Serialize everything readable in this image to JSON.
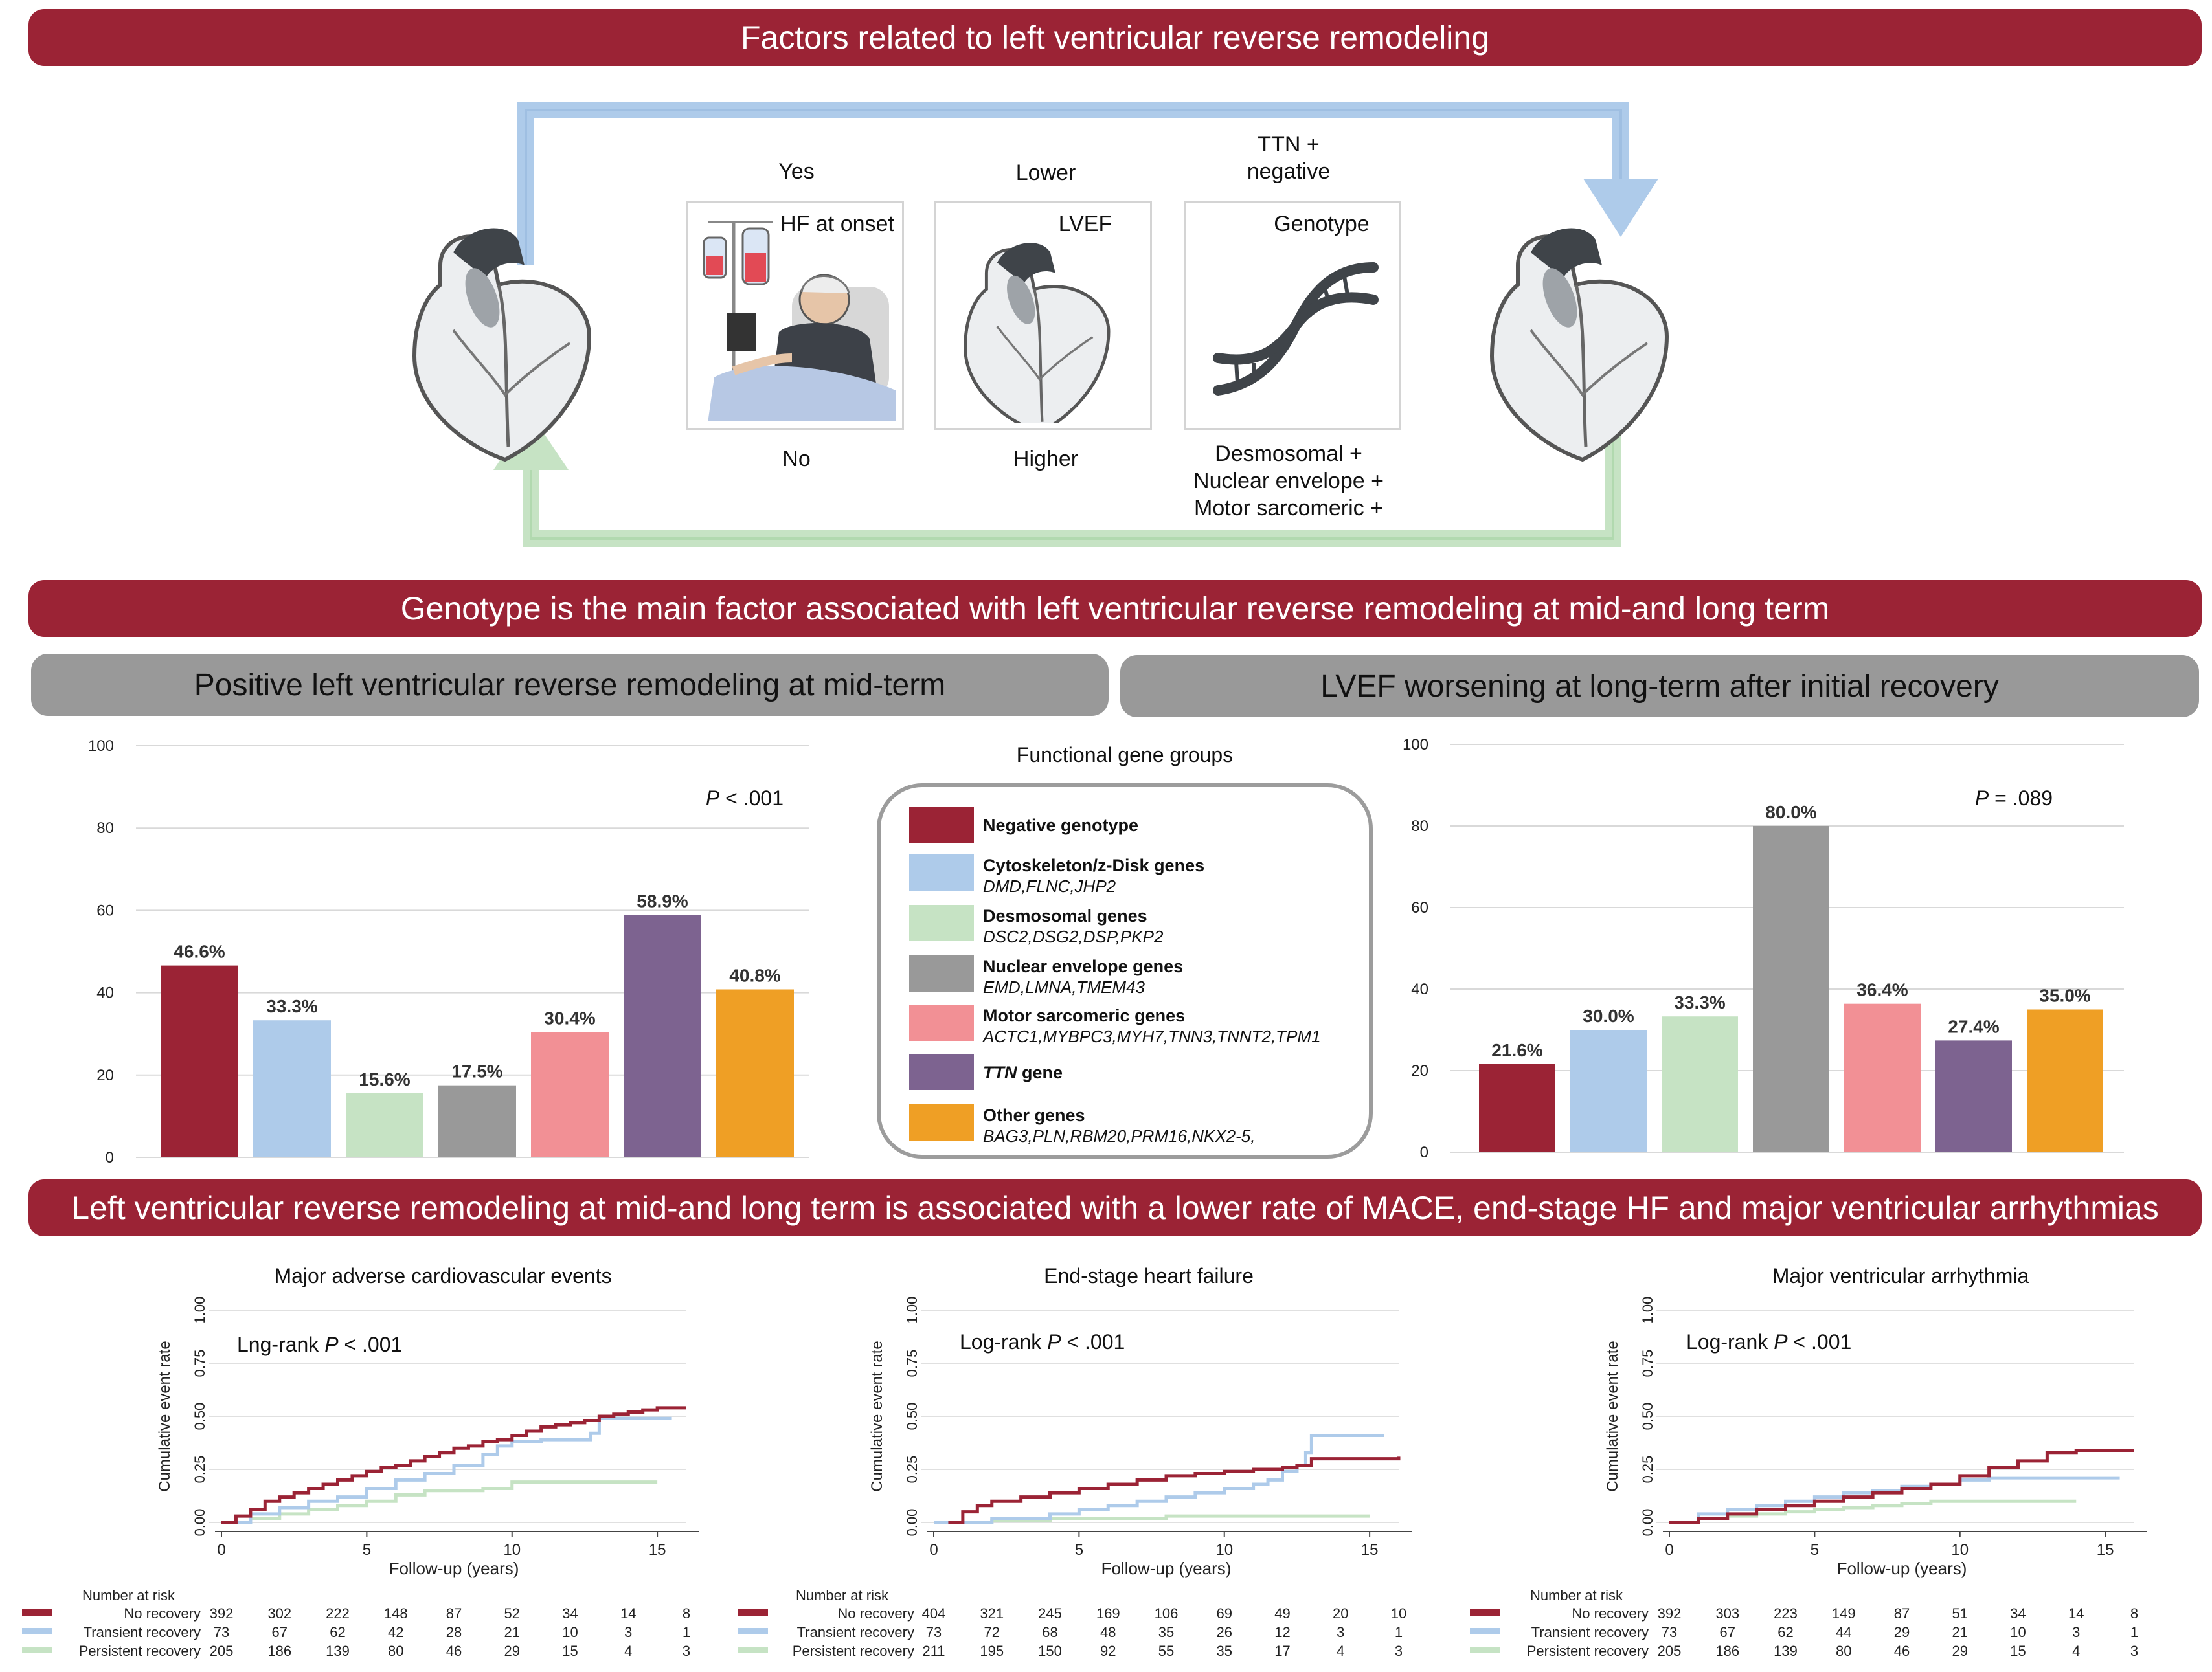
{
  "colors": {
    "banner": "#9b2335",
    "negative": "#9b2335",
    "cytoskeleton": "#aecbea",
    "desmosomal": "#c6e3c4",
    "nuclear": "#999999",
    "motor": "#f29095",
    "ttn": "#7d6390",
    "other": "#ef9f25",
    "arrow_blue": "#aecbea",
    "arrow_green": "#c6e3c4"
  },
  "banners": {
    "top": "Factors related to left ventricular reverse remodeling",
    "middle": "Genotype is the main factor associated with left ventricular reverse remodeling at mid-and long term",
    "bottom": "Left ventricular reverse remodeling at mid-and long term is associated with a lower rate of MACE, end-stage HF and major ventricular arrhythmias"
  },
  "factors": [
    {
      "top_label": "Yes",
      "card_label": "HF at onset",
      "bottom_label": "No",
      "icon": "patient-iv-icon"
    },
    {
      "top_label": "Lower",
      "card_label": "LVEF",
      "bottom_label": "Higher",
      "icon": "heart-icon"
    },
    {
      "top_label": "TTN +\nnegative",
      "card_label": "Genotype",
      "bottom_label": "Desmosomal +\nNuclear envelope +\nMotor sarcomeric +",
      "icon": "dna-icon"
    }
  ],
  "icons": [
    "heart-icon",
    "patient-iv-icon",
    "dna-icon",
    "arrow-down-icon",
    "arrow-up-icon"
  ],
  "subtitles": {
    "left": "Positive left ventricular reverse remodeling at mid-term",
    "right": "LVEF worsening at long-term after initial recovery"
  },
  "legend": {
    "title": "Functional gene groups",
    "items": [
      {
        "name": "Negative genotype",
        "genes": "",
        "color": "#9b2335"
      },
      {
        "name": "Cytoskeleton/z-Disk genes",
        "genes": "DMD,FLNC,JHP2",
        "color": "#aecbea"
      },
      {
        "name": "Desmosomal genes",
        "genes": "DSC2,DSG2,DSP,PKP2",
        "color": "#c6e3c4"
      },
      {
        "name": "Nuclear envelope genes",
        "genes": "EMD,LMNA,TMEM43",
        "color": "#999999"
      },
      {
        "name": "Motor sarcomeric genes",
        "genes": "ACTC1,MYBPC3,MYH7,TNN3,TNNT2,TPM1",
        "color": "#f29095"
      },
      {
        "name_italic": "TTN",
        "name": " gene",
        "genes": "",
        "color": "#7d6390"
      },
      {
        "name": "Other genes",
        "genes": "BAG3,PLN,RBM20,PRM16,NKX2-5,",
        "color": "#ef9f25"
      }
    ]
  },
  "chart_data": [
    {
      "type": "bar",
      "title": "Positive left ventricular reverse remodeling at mid-term",
      "categories": [
        "Negative genotype",
        "Cytoskeleton/z-Disk genes",
        "Desmosomal genes",
        "Nuclear envelope genes",
        "Motor sarcomeric genes",
        "TTN gene",
        "Other genes"
      ],
      "values": [
        46.6,
        33.3,
        15.6,
        17.5,
        30.4,
        58.9,
        40.8
      ],
      "value_labels": [
        "46.6%",
        "33.3%",
        "15.6%",
        "17.5%",
        "30.4%",
        "58.9%",
        "40.8%"
      ],
      "ylim": [
        0,
        100
      ],
      "yticks": [
        0,
        20,
        40,
        60,
        80,
        100
      ],
      "ytick_labels": [
        "0",
        "20",
        "40",
        "60",
        "80",
        "100"
      ],
      "grid": true,
      "annotation_italic": "P",
      "annotation": " < .001"
    },
    {
      "type": "bar",
      "title": "LVEF worsening at long-term after initial recovery",
      "categories": [
        "Negative genotype",
        "Cytoskeleton/z-Disk genes",
        "Desmosomal genes",
        "Nuclear envelope genes",
        "Motor sarcomeric genes",
        "TTN gene",
        "Other genes"
      ],
      "values": [
        21.6,
        30.0,
        33.3,
        80.0,
        36.4,
        27.4,
        35.0
      ],
      "value_labels": [
        "21.6%",
        "30.0%",
        "33.3%",
        "80.0%",
        "36.4%",
        "27.4%",
        "35.0%"
      ],
      "ylim": [
        0,
        100
      ],
      "yticks": [
        0,
        20,
        40,
        60,
        80,
        100
      ],
      "ytick_labels": [
        "0",
        "20",
        "40",
        "60",
        "80",
        "100"
      ],
      "grid": true,
      "annotation_italic": "P",
      "annotation": " = .089"
    },
    {
      "type": "line",
      "title": "Major adverse cardiovascular events",
      "xlabel": "Follow-up (years)",
      "ylabel": "Cumulative event rate",
      "xlim": [
        0,
        16
      ],
      "ylim": [
        0,
        1
      ],
      "xticks": [
        0,
        5,
        10,
        15
      ],
      "xtick_labels": [
        "0",
        "5",
        "10",
        "15"
      ],
      "yticks": [
        0,
        0.25,
        0.5,
        0.75,
        1
      ],
      "ytick_labels": [
        "0.00",
        "0.25",
        "0.50",
        "0.75",
        "1.00"
      ],
      "annotation_prefix": "Lng-rank ",
      "annotation_italic": "P",
      "annotation": " < .001",
      "series": [
        {
          "name": "No recovery",
          "color": "#9b2335",
          "x": [
            0,
            0.5,
            1,
            1.5,
            2,
            2.5,
            3,
            3.5,
            4,
            4.5,
            5,
            5.5,
            6,
            6.5,
            7,
            7.5,
            8,
            8.5,
            9,
            9.5,
            10,
            10.5,
            11,
            11.5,
            12,
            12.5,
            13,
            13.5,
            14,
            14.5,
            15,
            16
          ],
          "y": [
            0,
            0.03,
            0.06,
            0.1,
            0.12,
            0.14,
            0.16,
            0.18,
            0.2,
            0.22,
            0.24,
            0.26,
            0.27,
            0.29,
            0.31,
            0.33,
            0.35,
            0.36,
            0.38,
            0.39,
            0.41,
            0.43,
            0.45,
            0.46,
            0.47,
            0.48,
            0.5,
            0.51,
            0.52,
            0.53,
            0.54,
            0.54
          ]
        },
        {
          "name": "Transient recovery",
          "color": "#aecbea",
          "x": [
            0,
            1,
            2,
            3,
            4,
            5,
            6,
            7,
            8,
            9,
            9.5,
            10,
            11,
            12,
            12.7,
            13,
            14,
            15.5
          ],
          "y": [
            0,
            0.04,
            0.07,
            0.1,
            0.12,
            0.16,
            0.2,
            0.23,
            0.27,
            0.32,
            0.36,
            0.38,
            0.39,
            0.39,
            0.42,
            0.49,
            0.49,
            0.49
          ]
        },
        {
          "name": "Persistent recovery",
          "color": "#c6e3c4",
          "x": [
            0,
            1,
            2,
            3,
            4,
            5,
            6,
            7,
            8,
            9,
            10,
            11,
            12,
            13,
            14,
            15
          ],
          "y": [
            0,
            0.02,
            0.04,
            0.06,
            0.08,
            0.1,
            0.13,
            0.15,
            0.15,
            0.16,
            0.19,
            0.19,
            0.19,
            0.19,
            0.19,
            0.19
          ]
        }
      ],
      "risk_table": {
        "title": "Number at risk",
        "times": [
          0,
          2,
          4,
          6,
          8,
          10,
          12,
          14,
          16
        ],
        "rows": [
          {
            "label": "No recovery",
            "counts": [
              "392",
              "302",
              "222",
              "148",
              "87",
              "52",
              "34",
              "14",
              "8"
            ]
          },
          {
            "label": "Transient recovery",
            "counts": [
              "73",
              "67",
              "62",
              "42",
              "28",
              "21",
              "10",
              "3",
              "1"
            ]
          },
          {
            "label": "Persistent recovery",
            "counts": [
              "205",
              "186",
              "139",
              "80",
              "46",
              "29",
              "15",
              "4",
              "3"
            ]
          }
        ]
      }
    },
    {
      "type": "line",
      "title": "End-stage heart failure",
      "xlabel": "Follow-up (years)",
      "ylabel": "Cumulative event rate",
      "xlim": [
        0,
        16
      ],
      "ylim": [
        0,
        1
      ],
      "xticks": [
        0,
        5,
        10,
        15
      ],
      "xtick_labels": [
        "0",
        "5",
        "10",
        "15"
      ],
      "yticks": [
        0,
        0.25,
        0.5,
        0.75,
        1
      ],
      "ytick_labels": [
        "0.00",
        "0.25",
        "0.50",
        "0.75",
        "1.00"
      ],
      "annotation_prefix": "Log-rank ",
      "annotation_italic": "P",
      "annotation": " < .001",
      "series": [
        {
          "name": "No recovery",
          "color": "#9b2335",
          "x": [
            0.5,
            1,
            1.5,
            2,
            3,
            4,
            5,
            6,
            7,
            8,
            9,
            10,
            11,
            12,
            12.5,
            13,
            14,
            15,
            16
          ],
          "y": [
            0,
            0.05,
            0.08,
            0.1,
            0.12,
            0.14,
            0.16,
            0.18,
            0.2,
            0.22,
            0.23,
            0.24,
            0.25,
            0.26,
            0.27,
            0.3,
            0.3,
            0.3,
            0.31
          ]
        },
        {
          "name": "Transient recovery",
          "color": "#aecbea",
          "x": [
            0,
            2,
            4,
            5,
            6,
            7,
            8,
            9,
            10,
            11,
            11.5,
            12,
            12.5,
            12.8,
            13,
            15.5
          ],
          "y": [
            0,
            0.02,
            0.04,
            0.06,
            0.08,
            0.1,
            0.12,
            0.14,
            0.16,
            0.18,
            0.2,
            0.24,
            0.27,
            0.33,
            0.41,
            0.41
          ]
        },
        {
          "name": "Persistent recovery",
          "color": "#c6e3c4",
          "x": [
            0,
            2,
            4,
            6,
            8,
            10,
            12,
            14,
            15
          ],
          "y": [
            0,
            0.01,
            0.02,
            0.02,
            0.03,
            0.03,
            0.03,
            0.03,
            0.03
          ]
        }
      ],
      "risk_table": {
        "title": "Number at risk",
        "times": [
          0,
          2,
          4,
          6,
          8,
          10,
          12,
          14,
          16
        ],
        "rows": [
          {
            "label": "No recovery",
            "counts": [
              "404",
              "321",
              "245",
              "169",
              "106",
              "69",
              "49",
              "20",
              "10"
            ]
          },
          {
            "label": "Transient recovery",
            "counts": [
              "73",
              "72",
              "68",
              "48",
              "35",
              "26",
              "12",
              "3",
              "1"
            ]
          },
          {
            "label": "Persistent recovery",
            "counts": [
              "211",
              "195",
              "150",
              "92",
              "55",
              "35",
              "17",
              "4",
              "3"
            ]
          }
        ]
      }
    },
    {
      "type": "line",
      "title": "Major ventricular arrhythmia",
      "xlabel": "Follow-up (years)",
      "ylabel": "Cumulative event rate",
      "xlim": [
        0,
        16
      ],
      "ylim": [
        0,
        1
      ],
      "xticks": [
        0,
        5,
        10,
        15
      ],
      "xtick_labels": [
        "0",
        "5",
        "10",
        "15"
      ],
      "yticks": [
        0,
        0.25,
        0.5,
        0.75,
        1
      ],
      "ytick_labels": [
        "0.00",
        "0.25",
        "0.50",
        "0.75",
        "1.00"
      ],
      "annotation_prefix": "Log-rank ",
      "annotation_italic": "P",
      "annotation": " < .001",
      "series": [
        {
          "name": "No recovery",
          "color": "#9b2335",
          "x": [
            0,
            1,
            2,
            3,
            4,
            5,
            6,
            7,
            8,
            9,
            10,
            11,
            12,
            13,
            14,
            15,
            16
          ],
          "y": [
            0,
            0.02,
            0.04,
            0.06,
            0.08,
            0.1,
            0.12,
            0.14,
            0.16,
            0.18,
            0.22,
            0.26,
            0.29,
            0.33,
            0.34,
            0.34,
            0.34
          ]
        },
        {
          "name": "Transient recovery",
          "color": "#aecbea",
          "x": [
            0,
            1,
            2,
            3,
            4,
            5,
            6,
            7,
            8,
            9,
            10,
            11,
            12,
            13,
            14,
            15.5
          ],
          "y": [
            0,
            0.04,
            0.06,
            0.08,
            0.1,
            0.12,
            0.14,
            0.15,
            0.17,
            0.18,
            0.2,
            0.21,
            0.21,
            0.21,
            0.21,
            0.21
          ]
        },
        {
          "name": "Persistent recovery",
          "color": "#c6e3c4",
          "x": [
            0,
            1,
            2,
            3,
            4,
            5,
            6,
            7,
            8,
            9,
            10,
            11,
            12,
            13,
            14
          ],
          "y": [
            0,
            0.02,
            0.03,
            0.04,
            0.05,
            0.06,
            0.07,
            0.08,
            0.09,
            0.1,
            0.1,
            0.1,
            0.1,
            0.1,
            0.1
          ]
        }
      ],
      "risk_table": {
        "title": "Number at risk",
        "times": [
          0,
          2,
          4,
          6,
          8,
          10,
          12,
          14,
          16
        ],
        "rows": [
          {
            "label": "No recovery",
            "counts": [
              "392",
              "303",
              "223",
              "149",
              "87",
              "51",
              "34",
              "14",
              "8"
            ]
          },
          {
            "label": "Transient recovery",
            "counts": [
              "73",
              "67",
              "62",
              "44",
              "29",
              "21",
              "10",
              "3",
              "1"
            ]
          },
          {
            "label": "Persistent recovery",
            "counts": [
              "205",
              "186",
              "139",
              "80",
              "46",
              "29",
              "15",
              "4",
              "3"
            ]
          }
        ]
      }
    }
  ]
}
